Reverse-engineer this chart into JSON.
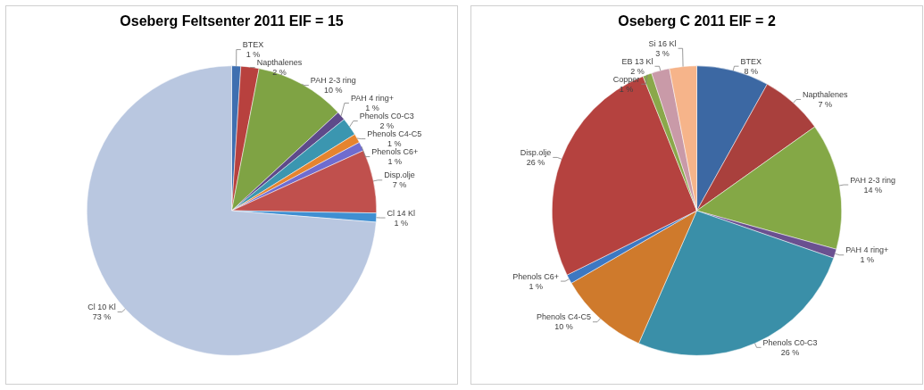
{
  "chart_data": [
    {
      "type": "pie",
      "title": "Oseberg Feltsenter 2011 EIF = 15",
      "categories": [
        "BTEX",
        "Napthalenes",
        "PAH 2-3 ring",
        "PAH 4 ring+",
        "Phenols C0-C3",
        "Phenols C4-C5",
        "Phenols C6+",
        "Disp.olje",
        "Cl 14 Kl",
        "Cl 10 Kl"
      ],
      "values": [
        1,
        2,
        10,
        1,
        2,
        1,
        1,
        7,
        1,
        73
      ],
      "value_labels": [
        "1 %",
        "2 %",
        "10 %",
        "1 %",
        "2 %",
        "1 %",
        "1 %",
        "7 %",
        "1 %",
        "73 %"
      ],
      "colors": [
        "#3f6fb0",
        "#b8413e",
        "#7fa344",
        "#5e4a8a",
        "#3b96b0",
        "#e5842f",
        "#6f6ccf",
        "#c0504d",
        "#3f8fd2",
        "#b9c7e0"
      ],
      "legend": false
    },
    {
      "type": "pie",
      "title": "Oseberg C 2011 EIF = 2",
      "categories": [
        "BTEX",
        "Napthalenes",
        "PAH 2-3 ring",
        "PAH 4 ring+",
        "Phenols C0-C3",
        "Phenols C4-C5",
        "Phenols C6+",
        "Disp.olje",
        "Copper",
        "EB 13 Kl",
        "Si 16 Kl"
      ],
      "values": [
        8,
        7,
        14,
        1,
        26,
        10,
        1,
        26,
        1,
        2,
        3
      ],
      "value_labels": [
        "8 %",
        "7 %",
        "14 %",
        "1 %",
        "26 %",
        "10 %",
        "1 %",
        "26 %",
        "1 %",
        "2 %",
        "3 %"
      ],
      "colors": [
        "#3c68a3",
        "#a9403d",
        "#84a846",
        "#6a5090",
        "#3a8fa8",
        "#cf7a2c",
        "#3d78c2",
        "#b5423f",
        "#8aa84a",
        "#c99aa8",
        "#f6b48a"
      ],
      "legend": false
    }
  ]
}
